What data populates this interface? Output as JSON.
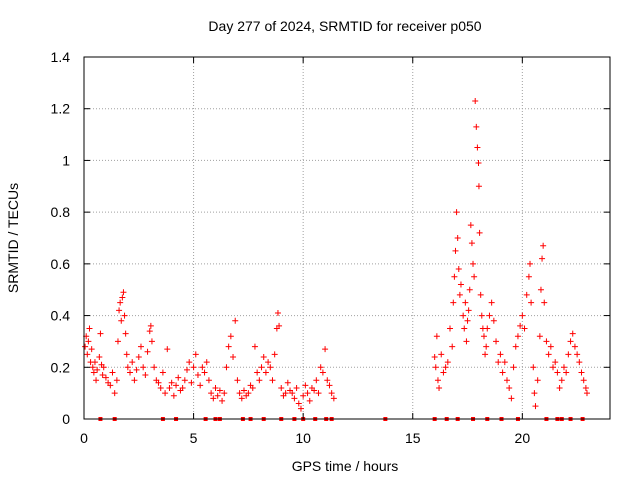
{
  "chart_data": {
    "type": "scatter",
    "title": "Day 277 of 2024, SRMTID for receiver p050",
    "xlabel": "GPS time / hours",
    "ylabel": "SRMTID / TECUs",
    "xlim": [
      0,
      24
    ],
    "ylim": [
      0,
      1.4
    ],
    "xticks": [
      0,
      5,
      10,
      15,
      20
    ],
    "yticks": [
      0,
      0.2,
      0.4,
      0.6,
      0.8,
      1,
      1.2,
      1.4
    ],
    "xtick_labels": [
      "0",
      "5",
      "10",
      "15",
      "20"
    ],
    "ytick_labels": [
      "0",
      "0.2",
      "0.4",
      "0.6",
      "0.8",
      "1",
      "1.2",
      "1.4"
    ],
    "grid": true,
    "marker": "+",
    "color": "#ff0000",
    "series": [
      {
        "name": "SRMTID",
        "points": [
          [
            0.05,
            0.28
          ],
          [
            0.1,
            0.32
          ],
          [
            0.15,
            0.25
          ],
          [
            0.2,
            0.3
          ],
          [
            0.25,
            0.35
          ],
          [
            0.3,
            0.22
          ],
          [
            0.35,
            0.27
          ],
          [
            0.4,
            0.2
          ],
          [
            0.45,
            0.18
          ],
          [
            0.5,
            0.22
          ],
          [
            0.55,
            0.15
          ],
          [
            0.6,
            0.19
          ],
          [
            0.7,
            0.24
          ],
          [
            0.75,
            0.33
          ],
          [
            0.8,
            0.21
          ],
          [
            0.85,
            0.17
          ],
          [
            0.9,
            0.2
          ],
          [
            1.0,
            0.16
          ],
          [
            1.1,
            0.14
          ],
          [
            1.2,
            0.13
          ],
          [
            1.3,
            0.18
          ],
          [
            1.4,
            0.1
          ],
          [
            1.5,
            0.15
          ],
          [
            1.55,
            0.3
          ],
          [
            1.6,
            0.42
          ],
          [
            1.65,
            0.45
          ],
          [
            1.7,
            0.38
          ],
          [
            1.75,
            0.47
          ],
          [
            1.8,
            0.49
          ],
          [
            1.85,
            0.4
          ],
          [
            1.9,
            0.33
          ],
          [
            1.95,
            0.25
          ],
          [
            2.0,
            0.2
          ],
          [
            2.1,
            0.18
          ],
          [
            2.2,
            0.22
          ],
          [
            2.3,
            0.15
          ],
          [
            2.4,
            0.19
          ],
          [
            2.5,
            0.24
          ],
          [
            2.6,
            0.28
          ],
          [
            2.7,
            0.2
          ],
          [
            2.8,
            0.17
          ],
          [
            2.9,
            0.26
          ],
          [
            3.0,
            0.34
          ],
          [
            3.05,
            0.36
          ],
          [
            3.1,
            0.3
          ],
          [
            3.2,
            0.2
          ],
          [
            3.3,
            0.15
          ],
          [
            3.4,
            0.14
          ],
          [
            3.5,
            0.12
          ],
          [
            3.6,
            0.18
          ],
          [
            3.7,
            0.1
          ],
          [
            3.8,
            0.27
          ],
          [
            3.9,
            0.12
          ],
          [
            4.0,
            0.14
          ],
          [
            4.1,
            0.09
          ],
          [
            4.2,
            0.13
          ],
          [
            4.3,
            0.16
          ],
          [
            4.4,
            0.11
          ],
          [
            4.5,
            0.12
          ],
          [
            4.6,
            0.15
          ],
          [
            4.7,
            0.19
          ],
          [
            4.8,
            0.22
          ],
          [
            4.9,
            0.14
          ],
          [
            5.0,
            0.2
          ],
          [
            5.1,
            0.25
          ],
          [
            5.2,
            0.17
          ],
          [
            5.3,
            0.13
          ],
          [
            5.4,
            0.2
          ],
          [
            5.5,
            0.18
          ],
          [
            5.6,
            0.22
          ],
          [
            5.7,
            0.15
          ],
          [
            5.8,
            0.1
          ],
          [
            5.9,
            0.08
          ],
          [
            6.0,
            0.12
          ],
          [
            6.1,
            0.09
          ],
          [
            6.2,
            0.11
          ],
          [
            6.3,
            0.07
          ],
          [
            6.4,
            0.1
          ],
          [
            6.5,
            0.2
          ],
          [
            6.6,
            0.28
          ],
          [
            6.7,
            0.32
          ],
          [
            6.8,
            0.24
          ],
          [
            6.9,
            0.38
          ],
          [
            7.0,
            0.15
          ],
          [
            7.1,
            0.1
          ],
          [
            7.2,
            0.08
          ],
          [
            7.3,
            0.11
          ],
          [
            7.4,
            0.09
          ],
          [
            7.5,
            0.1
          ],
          [
            7.6,
            0.13
          ],
          [
            7.7,
            0.12
          ],
          [
            7.8,
            0.28
          ],
          [
            7.9,
            0.18
          ],
          [
            8.0,
            0.15
          ],
          [
            8.1,
            0.2
          ],
          [
            8.2,
            0.24
          ],
          [
            8.3,
            0.18
          ],
          [
            8.4,
            0.22
          ],
          [
            8.5,
            0.2
          ],
          [
            8.6,
            0.15
          ],
          [
            8.7,
            0.25
          ],
          [
            8.8,
            0.35
          ],
          [
            8.85,
            0.41
          ],
          [
            8.9,
            0.36
          ],
          [
            9.0,
            0.12
          ],
          [
            9.1,
            0.09
          ],
          [
            9.2,
            0.1
          ],
          [
            9.3,
            0.14
          ],
          [
            9.4,
            0.11
          ],
          [
            9.5,
            0.1
          ],
          [
            9.6,
            0.08
          ],
          [
            9.7,
            0.12
          ],
          [
            9.8,
            0.06
          ],
          [
            9.9,
            0.04
          ],
          [
            10.0,
            0.09
          ],
          [
            10.1,
            0.13
          ],
          [
            10.2,
            0.1
          ],
          [
            10.3,
            0.07
          ],
          [
            10.4,
            0.12
          ],
          [
            10.5,
            0.11
          ],
          [
            10.6,
            0.15
          ],
          [
            10.7,
            0.1
          ],
          [
            10.8,
            0.2
          ],
          [
            10.9,
            0.18
          ],
          [
            11.0,
            0.27
          ],
          [
            11.1,
            0.15
          ],
          [
            11.2,
            0.13
          ],
          [
            11.3,
            0.1
          ],
          [
            11.4,
            0.08
          ],
          [
            16.0,
            0.24
          ],
          [
            16.05,
            0.2
          ],
          [
            16.1,
            0.32
          ],
          [
            16.15,
            0.15
          ],
          [
            16.2,
            0.12
          ],
          [
            16.3,
            0.25
          ],
          [
            16.4,
            0.18
          ],
          [
            16.5,
            0.2
          ],
          [
            16.6,
            0.22
          ],
          [
            16.7,
            0.35
          ],
          [
            16.8,
            0.28
          ],
          [
            16.85,
            0.45
          ],
          [
            16.9,
            0.55
          ],
          [
            16.95,
            0.65
          ],
          [
            17.0,
            0.8
          ],
          [
            17.05,
            0.7
          ],
          [
            17.1,
            0.58
          ],
          [
            17.15,
            0.48
          ],
          [
            17.2,
            0.52
          ],
          [
            17.3,
            0.4
          ],
          [
            17.35,
            0.35
          ],
          [
            17.4,
            0.45
          ],
          [
            17.45,
            0.3
          ],
          [
            17.5,
            0.38
          ],
          [
            17.55,
            0.42
          ],
          [
            17.6,
            0.5
          ],
          [
            17.65,
            0.75
          ],
          [
            17.7,
            0.68
          ],
          [
            17.75,
            0.6
          ],
          [
            17.8,
            0.55
          ],
          [
            17.85,
            1.23
          ],
          [
            17.9,
            1.13
          ],
          [
            17.95,
            1.05
          ],
          [
            18.0,
            0.99
          ],
          [
            18.02,
            0.9
          ],
          [
            18.05,
            0.72
          ],
          [
            18.1,
            0.48
          ],
          [
            18.15,
            0.4
          ],
          [
            18.2,
            0.35
          ],
          [
            18.25,
            0.32
          ],
          [
            18.3,
            0.25
          ],
          [
            18.35,
            0.28
          ],
          [
            18.4,
            0.35
          ],
          [
            18.5,
            0.4
          ],
          [
            18.6,
            0.45
          ],
          [
            18.7,
            0.38
          ],
          [
            18.8,
            0.3
          ],
          [
            18.9,
            0.22
          ],
          [
            19.0,
            0.25
          ],
          [
            19.1,
            0.18
          ],
          [
            19.2,
            0.22
          ],
          [
            19.3,
            0.15
          ],
          [
            19.4,
            0.12
          ],
          [
            19.5,
            0.08
          ],
          [
            19.6,
            0.2
          ],
          [
            19.7,
            0.28
          ],
          [
            19.8,
            0.32
          ],
          [
            19.9,
            0.36
          ],
          [
            20.0,
            0.4
          ],
          [
            20.1,
            0.35
          ],
          [
            20.2,
            0.48
          ],
          [
            20.3,
            0.55
          ],
          [
            20.35,
            0.6
          ],
          [
            20.4,
            0.45
          ],
          [
            20.5,
            0.2
          ],
          [
            20.55,
            0.1
          ],
          [
            20.6,
            0.05
          ],
          [
            20.7,
            0.15
          ],
          [
            20.8,
            0.32
          ],
          [
            20.85,
            0.5
          ],
          [
            20.9,
            0.62
          ],
          [
            20.95,
            0.67
          ],
          [
            21.0,
            0.45
          ],
          [
            21.1,
            0.3
          ],
          [
            21.2,
            0.25
          ],
          [
            21.3,
            0.28
          ],
          [
            21.4,
            0.2
          ],
          [
            21.5,
            0.22
          ],
          [
            21.6,
            0.18
          ],
          [
            21.7,
            0.12
          ],
          [
            21.8,
            0.15
          ],
          [
            21.9,
            0.2
          ],
          [
            22.0,
            0.18
          ],
          [
            22.1,
            0.25
          ],
          [
            22.2,
            0.3
          ],
          [
            22.3,
            0.33
          ],
          [
            22.4,
            0.28
          ],
          [
            22.5,
            0.25
          ],
          [
            22.6,
            0.22
          ],
          [
            22.7,
            0.18
          ],
          [
            22.8,
            0.15
          ],
          [
            22.9,
            0.12
          ],
          [
            22.95,
            0.1
          ]
        ]
      }
    ],
    "zero_markers": [
      0.75,
      1.4,
      3.6,
      4.2,
      5.55,
      6.0,
      6.2,
      7.25,
      7.6,
      8.2,
      9.0,
      9.6,
      10.0,
      10.55,
      11.05,
      11.3,
      13.75,
      16.0,
      16.55,
      17.05,
      17.75,
      18.4,
      19.05,
      19.8,
      21.1,
      21.6,
      21.8,
      22.2,
      22.75
    ]
  }
}
